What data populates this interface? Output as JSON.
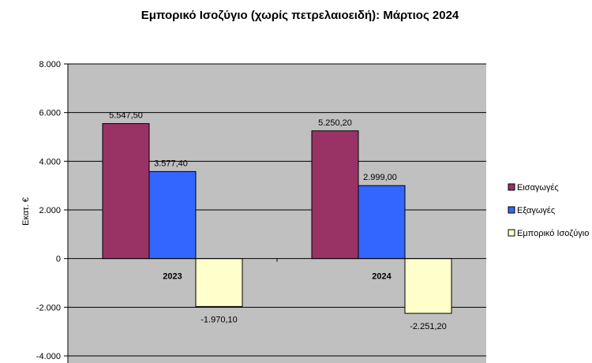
{
  "chart_data": {
    "type": "bar",
    "title": "Εμπορικό Ισοζύγιο (χωρίς πετρελαιοειδή): Μάρτιος 2024",
    "ylabel": "Εκατ. €",
    "xlabel": "",
    "categories": [
      "2023",
      "2024"
    ],
    "ylim": [
      -4000,
      8000
    ],
    "yticks": [
      8000,
      6000,
      4000,
      2000,
      0,
      -2000,
      -4000
    ],
    "ytick_labels": [
      "8.000",
      "6.000",
      "4.000",
      "2.000",
      "0",
      "-2.000",
      "-4.000"
    ],
    "grid": true,
    "legend_position": "right",
    "series": [
      {
        "name": "Εισαγωγές",
        "color": "#993366",
        "values": [
          5547.5,
          5250.2
        ],
        "labels": [
          "5.547,50",
          "5.250,20"
        ]
      },
      {
        "name": "Εξαγωγές",
        "color": "#3366ff",
        "values": [
          3577.4,
          2999.0
        ],
        "labels": [
          "3.577,40",
          "2.999,00"
        ]
      },
      {
        "name": "Εμπορικό Ισοζύγιο",
        "color": "#ffffcc",
        "values": [
          -1970.1,
          -2251.2
        ],
        "labels": [
          "-1.970,10",
          "-2.251,20"
        ]
      }
    ]
  }
}
